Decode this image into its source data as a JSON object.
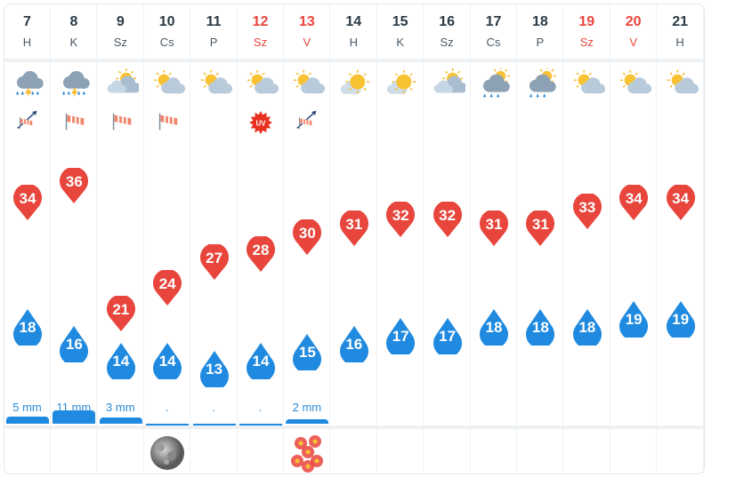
{
  "days": [
    {
      "date": "7",
      "dow": "H",
      "weekend": false,
      "icon": "rain-thunder-icon",
      "wind": "windsock-arrow-icon",
      "uv": false,
      "max": "34",
      "min": "18",
      "rain": "5 mm",
      "rain_level": 0.45,
      "moon": false,
      "flower": false
    },
    {
      "date": "8",
      "dow": "K",
      "weekend": false,
      "icon": "rain-thunder-icon",
      "wind": "windsock-icon",
      "uv": false,
      "max": "36",
      "min": "16",
      "rain": "11 mm",
      "rain_level": 1.0,
      "moon": false,
      "flower": false
    },
    {
      "date": "9",
      "dow": "Sz",
      "weekend": false,
      "icon": "partly-cloudy-icon",
      "wind": "windsock-icon",
      "uv": false,
      "max": "21",
      "min": "14",
      "rain": "3 mm",
      "rain_level": 0.3,
      "moon": false,
      "flower": false
    },
    {
      "date": "10",
      "dow": "Cs",
      "weekend": false,
      "icon": "partly-sunny-icon",
      "wind": "windsock-icon",
      "uv": false,
      "max": "24",
      "min": "14",
      "rain": ".",
      "rain_level": 0,
      "moon": true,
      "flower": false
    },
    {
      "date": "11",
      "dow": "P",
      "weekend": false,
      "icon": "partly-sunny-icon",
      "wind": "",
      "uv": false,
      "max": "27",
      "min": "13",
      "rain": ".",
      "rain_level": 0,
      "moon": false,
      "flower": false
    },
    {
      "date": "12",
      "dow": "Sz",
      "weekend": true,
      "icon": "partly-sunny-icon",
      "wind": "",
      "uv": true,
      "max": "28",
      "min": "14",
      "rain": ".",
      "rain_level": 0,
      "moon": false,
      "flower": false
    },
    {
      "date": "13",
      "dow": "V",
      "weekend": true,
      "icon": "partly-sunny-icon",
      "wind": "windsock-arrow-icon",
      "uv": false,
      "max": "30",
      "min": "15",
      "rain": "2 mm",
      "rain_level": 0.2,
      "moon": false,
      "flower": true
    },
    {
      "date": "14",
      "dow": "H",
      "weekend": false,
      "icon": "sun-cloud-icon",
      "wind": "",
      "uv": false,
      "max": "31",
      "min": "16",
      "rain": "",
      "rain_level": 0,
      "moon": false,
      "flower": false
    },
    {
      "date": "15",
      "dow": "K",
      "weekend": false,
      "icon": "sun-cloud-icon",
      "wind": "",
      "uv": false,
      "max": "32",
      "min": "17",
      "rain": "",
      "rain_level": 0,
      "moon": false,
      "flower": false
    },
    {
      "date": "16",
      "dow": "Sz",
      "weekend": false,
      "icon": "partly-cloudy-icon",
      "wind": "",
      "uv": false,
      "max": "32",
      "min": "17",
      "rain": "",
      "rain_level": 0,
      "moon": false,
      "flower": false
    },
    {
      "date": "17",
      "dow": "Cs",
      "weekend": false,
      "icon": "sun-rain-icon",
      "wind": "",
      "uv": false,
      "max": "31",
      "min": "18",
      "rain": "",
      "rain_level": 0,
      "moon": false,
      "flower": false
    },
    {
      "date": "18",
      "dow": "P",
      "weekend": false,
      "icon": "sun-rain-icon",
      "wind": "",
      "uv": false,
      "max": "31",
      "min": "18",
      "rain": "",
      "rain_level": 0,
      "moon": false,
      "flower": false
    },
    {
      "date": "19",
      "dow": "Sz",
      "weekend": true,
      "icon": "partly-sunny-icon",
      "wind": "",
      "uv": false,
      "max": "33",
      "min": "18",
      "rain": "",
      "rain_level": 0,
      "moon": false,
      "flower": false
    },
    {
      "date": "20",
      "dow": "V",
      "weekend": true,
      "icon": "partly-sunny-icon",
      "wind": "",
      "uv": false,
      "max": "34",
      "min": "19",
      "rain": "",
      "rain_level": 0,
      "moon": false,
      "flower": false
    },
    {
      "date": "21",
      "dow": "H",
      "weekend": false,
      "icon": "partly-sunny-icon",
      "wind": "",
      "uv": false,
      "max": "34",
      "min": "19",
      "rain": "",
      "rain_level": 0,
      "moon": false,
      "flower": false
    }
  ],
  "uv_label": "UV",
  "colors": {
    "max": "#e8453c",
    "min": "#1f8ae0",
    "weekend": "#e8453c",
    "rain": "#2a8ad8"
  }
}
